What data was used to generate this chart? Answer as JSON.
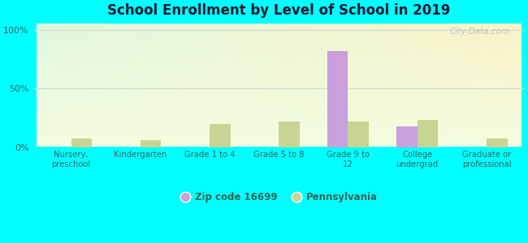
{
  "title": "School Enrollment by Level of School in 2019",
  "categories": [
    "Nursery,\npreschool",
    "Kindergarten",
    "Grade 1 to 4",
    "Grade 5 to 8",
    "Grade 9 to\n12",
    "College\nundergrad",
    "Graduate or\nprofessional"
  ],
  "zip_values": [
    0,
    0,
    0,
    0,
    82,
    18,
    0
  ],
  "pa_values": [
    7,
    6,
    20,
    22,
    22,
    23,
    7
  ],
  "zip_color": "#c8a0dc",
  "pa_color": "#c8d494",
  "figure_bg": "#00ffff",
  "plot_bg_color": "#e8f8e8",
  "yticks": [
    0,
    50,
    100
  ],
  "ylim": [
    0,
    105
  ],
  "bar_width": 0.3,
  "legend_zip_label": "Zip code 16699",
  "legend_pa_label": "Pennsylvania",
  "watermark": "City-Data.com",
  "title_color": "#1a1a2e",
  "tick_color": "#336666",
  "grid_color": "#ddeeee"
}
